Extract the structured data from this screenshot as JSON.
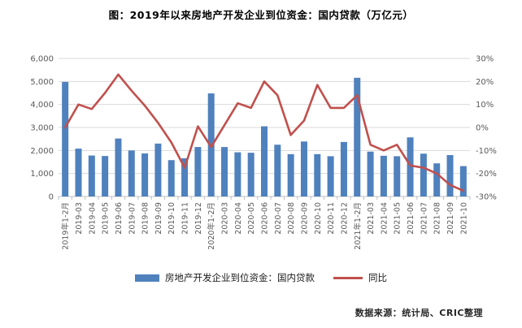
{
  "title": "图：2019年以来房地产开发企业到位资金：国内贷款（万亿元）",
  "source": "数据来源：统计局、CRIC整理",
  "legend": {
    "bars": "房地产开发企业到位资金：国内贷款",
    "line": "同比"
  },
  "colors": {
    "bar": "#4F81BD",
    "line": "#C0504D",
    "grid": "#D9D9D9",
    "axis_line": "#BFBFBF",
    "axis_text": "#595959",
    "title_text": "#000000"
  },
  "chart_data": {
    "type": "bar",
    "subtype": "bar-line-combo",
    "title": "图：2019年以来房地产开发企业到位资金：国内贷款（万亿元）",
    "categories": [
      "2019年1-2月",
      "2019-03",
      "2019-04",
      "2019-05",
      "2019-06",
      "2019-07",
      "2019-08",
      "2019-09",
      "2019-10",
      "2019-11",
      "2019-12",
      "2020年1-2月",
      "2020-03",
      "2020-04",
      "2020-05",
      "2020-06",
      "2020-07",
      "2020-08",
      "2020-09",
      "2020-10",
      "2020-11",
      "2020-12",
      "2021年1-2月",
      "2021-03",
      "2021-04",
      "2021-05",
      "2021-06",
      "2021-07",
      "2021-08",
      "2021-09",
      "2021-10"
    ],
    "series": [
      {
        "name": "房地产开发企业到位资金：国内贷款",
        "type": "bar",
        "axis": "left",
        "color": "#4F81BD",
        "values": [
          4980,
          2080,
          1780,
          1760,
          2520,
          2000,
          1870,
          2300,
          1580,
          1660,
          2150,
          4480,
          2150,
          1920,
          1900,
          3050,
          2250,
          1840,
          2390,
          1840,
          1750,
          2370,
          5160,
          1950,
          1770,
          1750,
          2570,
          1860,
          1440,
          1800,
          1320
        ]
      },
      {
        "name": "同比",
        "type": "line",
        "axis": "right",
        "color": "#C0504D",
        "values": [
          0,
          10,
          8,
          15,
          23,
          16,
          9.5,
          2,
          -6.5,
          -17.5,
          0.5,
          -8.5,
          1,
          10.5,
          8.5,
          20,
          14,
          -3.3,
          3,
          18.5,
          8.5,
          8.5,
          14,
          -7.5,
          -10,
          -7.5,
          -16.5,
          -17.5,
          -20,
          -25,
          -27.5
        ]
      }
    ],
    "left_axis": {
      "min": 0,
      "max": 6000,
      "step": 1000,
      "tick_labels": [
        "0",
        "1,000",
        "2,000",
        "3,000",
        "4,000",
        "5,000",
        "6,000"
      ]
    },
    "right_axis": {
      "min": -30,
      "max": 30,
      "step": 10,
      "unit": "%",
      "tick_labels": [
        "-30%",
        "-20%",
        "-10%",
        "0%",
        "10%",
        "20%",
        "30%"
      ]
    },
    "grid": true,
    "legend_position": "bottom"
  }
}
